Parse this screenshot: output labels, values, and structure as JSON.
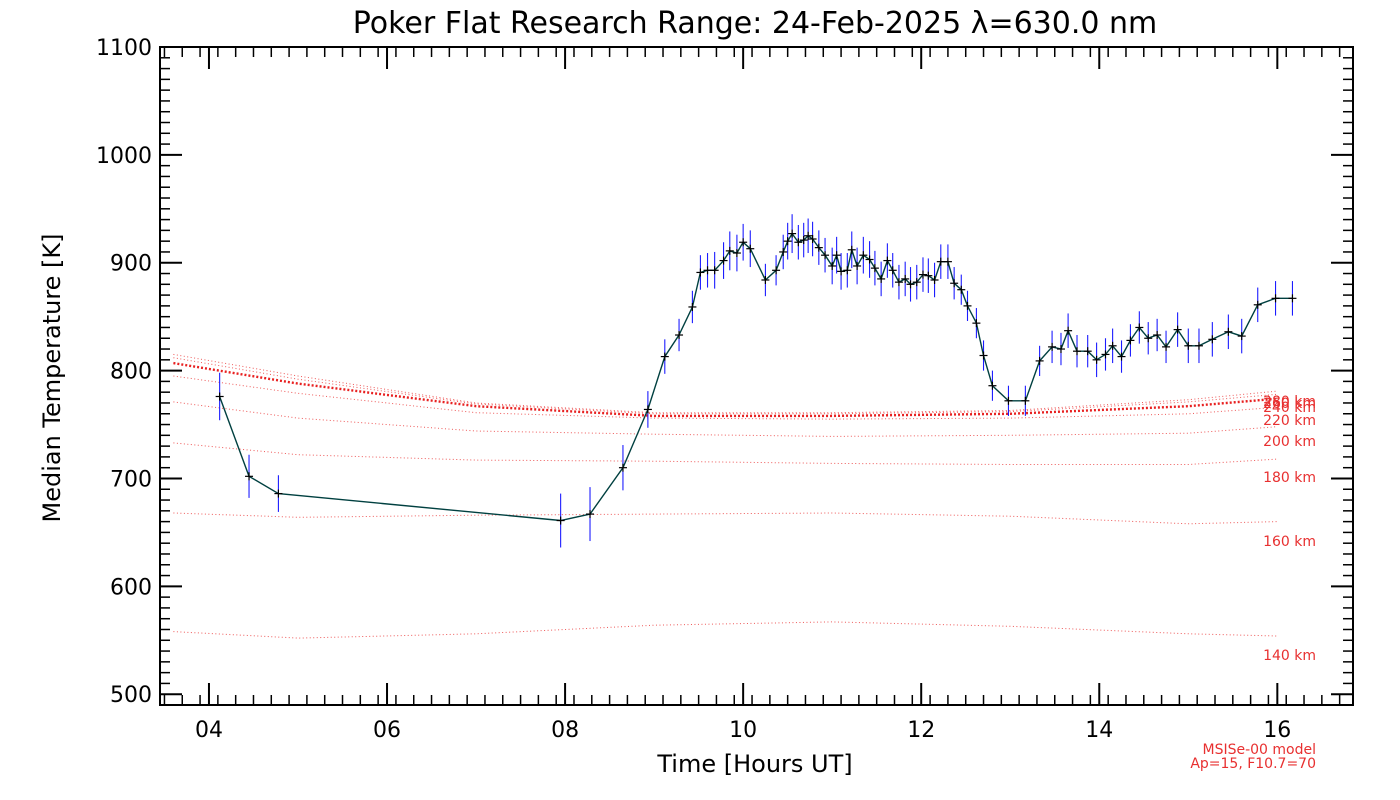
{
  "chart_data": {
    "type": "line",
    "title": "Poker Flat Research Range: 24-Feb-2025 λ=630.0 nm",
    "xlabel": "Time [Hours UT]",
    "ylabel": "Median Temperature [K]",
    "xlim": [
      3.45,
      16.85
    ],
    "ylim": [
      490,
      1100
    ],
    "x_ticks": [
      4,
      6,
      8,
      10,
      12,
      14,
      16
    ],
    "x_tick_labels": [
      "04",
      "06",
      "08",
      "10",
      "12",
      "14",
      "16"
    ],
    "y_ticks": [
      500,
      600,
      700,
      800,
      900,
      1000,
      1100
    ],
    "y_tick_labels": [
      "500",
      "600",
      "700",
      "800",
      "900",
      "1000",
      "1100"
    ],
    "grid": false,
    "model_note": [
      "MSISe-00 model",
      "Ap=15, F10.7=70"
    ],
    "colors": {
      "measurement_line": "#004040",
      "error_bars": "#1c1cff",
      "model_lines": "#e82020"
    },
    "series": [
      {
        "name": "Median Temperature",
        "x": [
          4.12,
          4.45,
          4.78,
          7.95,
          8.28,
          8.65,
          8.93,
          9.12,
          9.28,
          9.43,
          9.52,
          9.6,
          9.68,
          9.78,
          9.85,
          9.93,
          10.0,
          10.08,
          10.25,
          10.37,
          10.45,
          10.5,
          10.55,
          10.62,
          10.68,
          10.73,
          10.78,
          10.85,
          10.92,
          11.0,
          11.05,
          11.1,
          11.17,
          11.22,
          11.28,
          11.35,
          11.42,
          11.48,
          11.55,
          11.62,
          11.68,
          11.75,
          11.82,
          11.88,
          11.95,
          12.02,
          12.08,
          12.15,
          12.22,
          12.3,
          12.37,
          12.45,
          12.52,
          12.62,
          12.7,
          12.8,
          12.98,
          13.17,
          13.33,
          13.47,
          13.57,
          13.65,
          13.75,
          13.87,
          13.97,
          14.07,
          14.15,
          14.25,
          14.35,
          14.45,
          14.55,
          14.65,
          14.75,
          14.88,
          15.0,
          15.12,
          15.27,
          15.45,
          15.6,
          15.78,
          15.98,
          16.17
        ],
        "y": [
          776,
          702,
          686,
          661,
          667,
          710,
          764,
          813,
          833,
          859,
          891,
          893,
          893,
          902,
          911,
          909,
          919,
          913,
          884,
          893,
          910,
          920,
          927,
          919,
          921,
          925,
          922,
          914,
          907,
          897,
          907,
          892,
          893,
          912,
          897,
          907,
          903,
          895,
          885,
          902,
          893,
          882,
          885,
          880,
          882,
          889,
          888,
          884,
          901,
          901,
          881,
          875,
          860,
          844,
          814,
          786,
          772,
          772,
          809,
          822,
          820,
          837,
          818,
          818,
          810,
          815,
          823,
          813,
          828,
          840,
          830,
          833,
          822,
          838,
          823,
          823,
          829,
          836,
          832,
          861,
          867,
          867
        ],
        "error": [
          22,
          20,
          17,
          25,
          25,
          21,
          17,
          16,
          15,
          15,
          16,
          16,
          17,
          17,
          18,
          17,
          17,
          17,
          15,
          14,
          16,
          17,
          18,
          16,
          16,
          16,
          16,
          16,
          16,
          17,
          17,
          17,
          16,
          17,
          17,
          17,
          17,
          16,
          16,
          16,
          16,
          16,
          16,
          16,
          16,
          16,
          16,
          16,
          16,
          16,
          15,
          14,
          14,
          14,
          14,
          14,
          14,
          14,
          14,
          15,
          15,
          16,
          15,
          15,
          16,
          15,
          16,
          15,
          15,
          15,
          15,
          15,
          15,
          16,
          16,
          16,
          16,
          16,
          16,
          16,
          16,
          16
        ]
      }
    ],
    "model_altitudes": [
      {
        "label": "140 km",
        "x": [
          3.6,
          5,
          7,
          9,
          11,
          13,
          15,
          16
        ],
        "y": [
          558,
          552,
          556,
          564,
          567,
          563,
          556,
          554
        ]
      },
      {
        "label": "160 km",
        "x": [
          3.6,
          5,
          7,
          9,
          11,
          13,
          15,
          16
        ],
        "y": [
          668,
          664,
          666,
          667,
          668,
          665,
          658,
          660
        ]
      },
      {
        "label": "180 km",
        "x": [
          3.6,
          5,
          7,
          9,
          11,
          13,
          15,
          16
        ],
        "y": [
          733,
          722,
          717,
          716,
          714,
          713,
          713,
          718
        ]
      },
      {
        "label": "200 km",
        "x": [
          3.6,
          5,
          7,
          9,
          11,
          13,
          15,
          16
        ],
        "y": [
          771,
          756,
          744,
          741,
          739,
          740,
          742,
          748
        ]
      },
      {
        "label": "220 km",
        "x": [
          3.6,
          5,
          7,
          9,
          11,
          13,
          15,
          16
        ],
        "y": [
          795,
          779,
          761,
          756,
          755,
          756,
          760,
          766
        ]
      },
      {
        "label": "240 km",
        "x": [
          3.6,
          5,
          7,
          9,
          11,
          13,
          15,
          16
        ],
        "y": [
          807,
          788,
          767,
          758,
          758,
          760,
          767,
          774
        ]
      },
      {
        "label": "260 km",
        "x": [
          3.6,
          5,
          7,
          9,
          11,
          13,
          15,
          16
        ],
        "y": [
          812,
          792,
          769,
          760,
          760,
          762,
          771,
          778
        ]
      },
      {
        "label": "280 km",
        "x": [
          3.6,
          5,
          7,
          9,
          11,
          13,
          15,
          16
        ],
        "y": [
          815,
          795,
          770,
          761,
          761,
          763,
          773,
          781
        ]
      }
    ]
  }
}
